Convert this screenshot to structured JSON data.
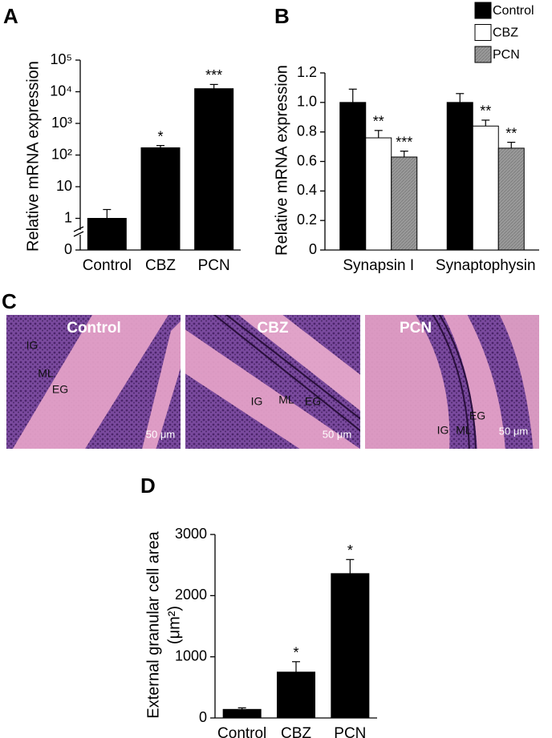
{
  "chart_data": [
    {
      "type": "bar",
      "panel": "A",
      "ylabel": "Relative mRNA expression",
      "categories": [
        "Control",
        "CBZ",
        "PCN"
      ],
      "values": [
        1,
        170,
        12500
      ],
      "errors": [
        0.9,
        30,
        4500
      ],
      "significance": [
        null,
        "*",
        "***"
      ],
      "color": "#000000",
      "log_scale": true,
      "axis_break": true,
      "ylim": [
        0.1,
        100000
      ],
      "yticks": [
        0,
        1,
        10,
        {
          "value": 100,
          "label": "10²"
        },
        {
          "value": 1000,
          "label": "10³"
        },
        {
          "value": 10000,
          "label": "10⁴"
        },
        {
          "value": 100000,
          "label": "10⁵"
        }
      ]
    },
    {
      "type": "bar",
      "panel": "B",
      "ylabel": "Relative mRNA expression",
      "categories": [
        "Synapsin I",
        "Synaptophysin"
      ],
      "series": [
        {
          "name": "Control",
          "color": "#000000",
          "values": [
            1.0,
            1.0
          ],
          "errors": [
            0.09,
            0.06
          ],
          "significance": [
            null,
            null
          ]
        },
        {
          "name": "CBZ",
          "color": "#ffffff",
          "values": [
            0.76,
            0.84
          ],
          "errors": [
            0.05,
            0.04
          ],
          "significance": [
            "**",
            "**"
          ]
        },
        {
          "name": "PCN",
          "color": "#9a9a9a",
          "values": [
            0.63,
            0.69
          ],
          "errors": [
            0.04,
            0.04
          ],
          "significance": [
            "***",
            "**"
          ]
        }
      ],
      "ylim": [
        0,
        1.2
      ],
      "yticks": [
        0,
        0.2,
        0.4,
        0.6,
        0.8,
        {
          "value": 1,
          "label": "1.0"
        },
        1.2
      ]
    },
    {
      "type": "bar",
      "panel": "D",
      "ylabel": [
        "External granular cell area",
        "(μm²)"
      ],
      "categories": [
        "Control",
        "CBZ",
        "PCN"
      ],
      "values": [
        140,
        750,
        2360
      ],
      "errors": [
        25,
        170,
        230
      ],
      "significance": [
        null,
        "*",
        "*"
      ],
      "color": "#000000",
      "ylim": [
        0,
        3000
      ],
      "yticks": [
        0,
        1000,
        2000,
        3000
      ]
    }
  ],
  "panel_c": {
    "panel": "C",
    "images": [
      {
        "title": "Control",
        "labels": [
          "IG",
          "ML",
          "EG"
        ],
        "scale_bar": "50 μm"
      },
      {
        "title": "CBZ",
        "labels": [
          "IG",
          "ML",
          "EG"
        ],
        "scale_bar": "50 μm"
      },
      {
        "title": "PCN",
        "labels": [
          "IG",
          "ML",
          "EG"
        ],
        "scale_bar": "50 μm"
      }
    ]
  }
}
